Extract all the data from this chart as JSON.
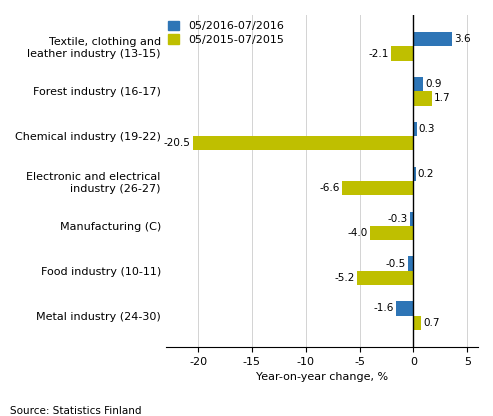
{
  "categories": [
    "Metal industry (24-30)",
    "Food industry (10-11)",
    "Manufacturing (C)",
    "Electronic and electrical\nindustry (26-27)",
    "Chemical industry (19-22)",
    "Forest industry (16-17)",
    "Textile, clothing and\nleather industry (13-15)"
  ],
  "series_2016": [
    -1.6,
    -0.5,
    -0.3,
    0.2,
    0.3,
    0.9,
    3.6
  ],
  "series_2015": [
    0.7,
    -5.2,
    -4.0,
    -6.6,
    -20.5,
    1.7,
    -2.1
  ],
  "color_2016": "#2E75B6",
  "color_2015": "#BFBF00",
  "legend_2016": "05/2016-07/2016",
  "legend_2015": "05/2015-07/2015",
  "xlabel": "Year-on-year change, %",
  "xlim": [
    -23,
    6
  ],
  "xticks": [
    -20,
    -15,
    -10,
    -5,
    0,
    5
  ],
  "source": "Source: Statistics Finland",
  "bar_height": 0.32,
  "label_fontsize": 7.5,
  "tick_fontsize": 8
}
